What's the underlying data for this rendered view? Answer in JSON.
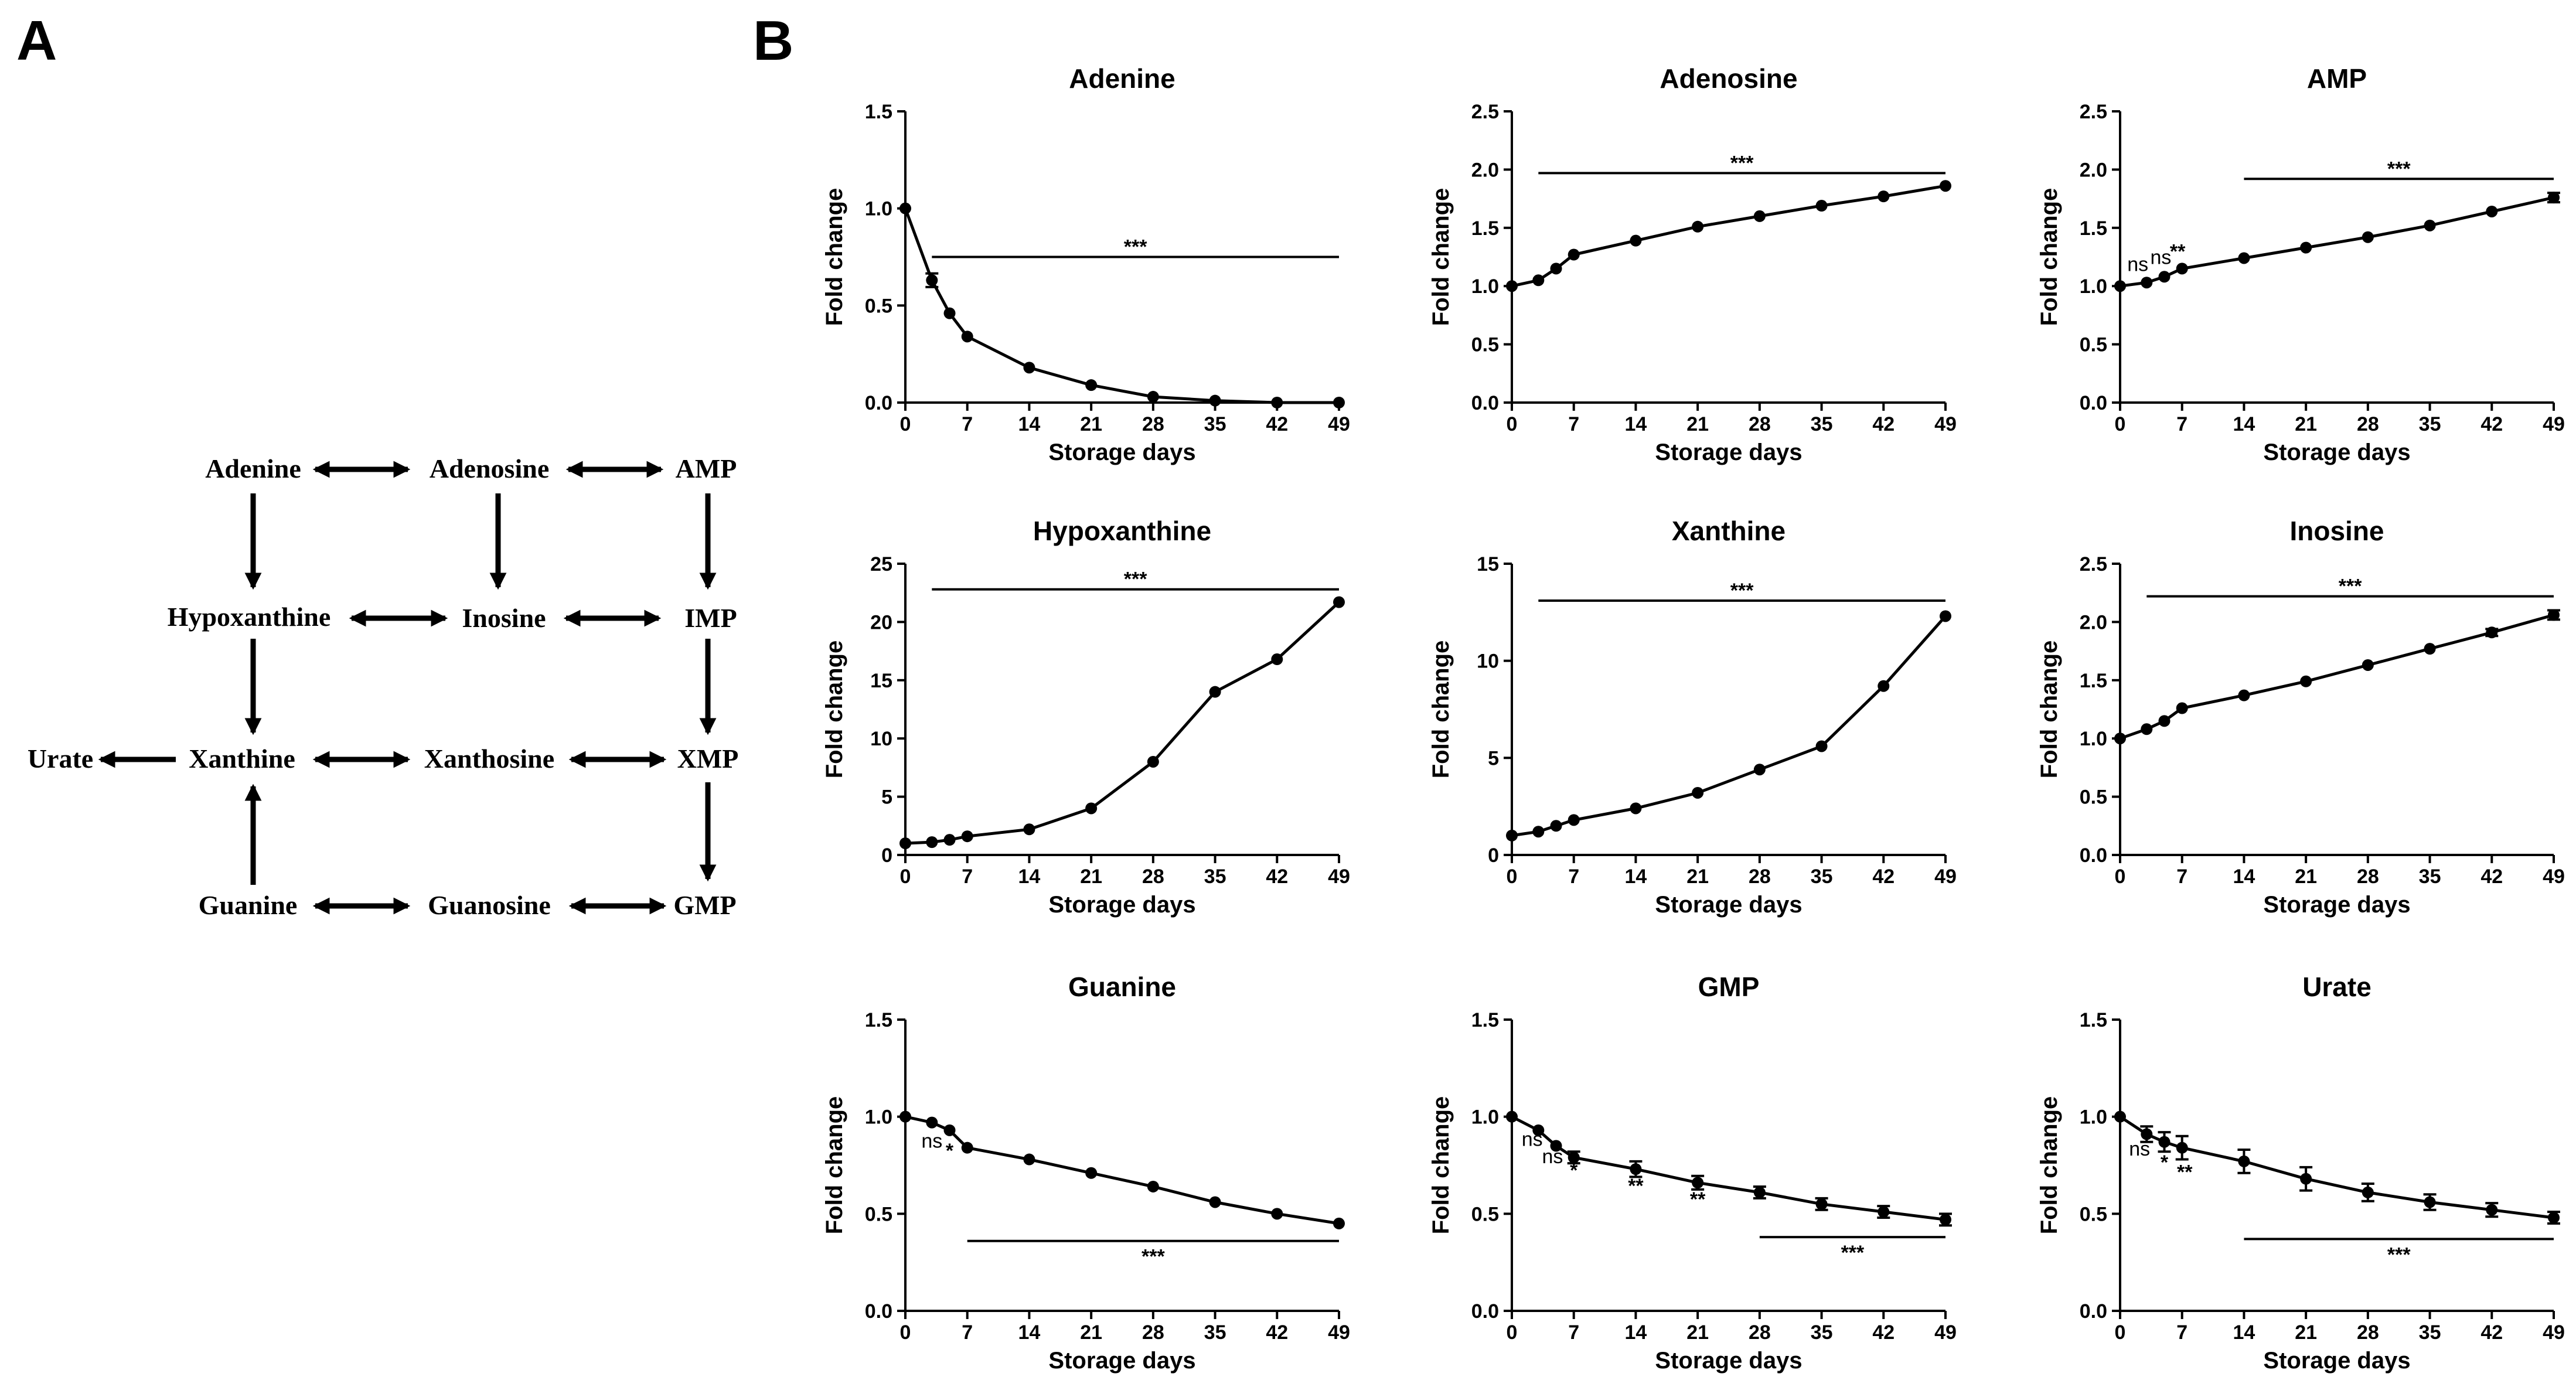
{
  "panels": {
    "a": "A",
    "b": "B"
  },
  "pathway": {
    "nodes": {
      "adenine": "Adenine",
      "adenosine": "Adenosine",
      "amp": "AMP",
      "hypoxanthine": "Hypoxanthine",
      "inosine": "Inosine",
      "imp": "IMP",
      "urate": "Urate",
      "xanthine": "Xanthine",
      "xanthosine": "Xanthosine",
      "xmp": "XMP",
      "guanine": "Guanine",
      "guanosine": "Guanosine",
      "gmp": "GMP"
    }
  },
  "chart_data": [
    {
      "type": "line",
      "title": "Adenine",
      "xlabel": "Storage days",
      "ylabel": "Fold change",
      "x": [
        0,
        3,
        5,
        7,
        14,
        21,
        28,
        35,
        42,
        49
      ],
      "y": [
        1.0,
        0.63,
        0.46,
        0.34,
        0.18,
        0.09,
        0.03,
        0.01,
        0.0,
        0.0
      ],
      "err": [
        0,
        0.035,
        0,
        0,
        0,
        0,
        0,
        0,
        0,
        0
      ],
      "xticks": [
        0,
        7,
        14,
        21,
        28,
        35,
        42,
        49
      ],
      "xlim": [
        0,
        49
      ],
      "yticks": [
        "0.0",
        "0.5",
        "1.0",
        "1.5"
      ],
      "ylim": [
        0,
        1.5
      ],
      "annotations": [
        {
          "type": "bar",
          "from": 3,
          "to": 49,
          "y": 0.75,
          "label": "***"
        }
      ]
    },
    {
      "type": "line",
      "title": "Adenosine",
      "xlabel": "Storage days",
      "ylabel": "Fold change",
      "x": [
        0,
        3,
        5,
        7,
        14,
        21,
        28,
        35,
        42,
        49
      ],
      "y": [
        1.0,
        1.05,
        1.15,
        1.27,
        1.39,
        1.51,
        1.6,
        1.69,
        1.77,
        1.86
      ],
      "err": [
        0,
        0,
        0,
        0,
        0,
        0,
        0,
        0,
        0,
        0
      ],
      "xticks": [
        0,
        7,
        14,
        21,
        28,
        35,
        42,
        49
      ],
      "xlim": [
        0,
        49
      ],
      "yticks": [
        "0.0",
        "0.5",
        "1.0",
        "1.5",
        "2.0",
        "2.5"
      ],
      "ylim": [
        0,
        2.5
      ],
      "annotations": [
        {
          "type": "bar",
          "from": 3,
          "to": 49,
          "y": 1.97,
          "label": "***"
        }
      ]
    },
    {
      "type": "line",
      "title": "AMP",
      "xlabel": "Storage days",
      "ylabel": "Fold change",
      "x": [
        0,
        3,
        5,
        7,
        14,
        21,
        28,
        35,
        42,
        49
      ],
      "y": [
        1.0,
        1.03,
        1.08,
        1.15,
        1.24,
        1.33,
        1.42,
        1.52,
        1.64,
        1.76
      ],
      "err": [
        0,
        0,
        0,
        0,
        0,
        0,
        0,
        0,
        0,
        0.04
      ],
      "xticks": [
        0,
        7,
        14,
        21,
        28,
        35,
        42,
        49
      ],
      "xlim": [
        0,
        49
      ],
      "yticks": [
        "0.0",
        "0.5",
        "1.0",
        "1.5",
        "2.0",
        "2.5"
      ],
      "ylim": [
        0,
        2.5
      ],
      "annotations": [
        {
          "type": "bar",
          "from": 14,
          "to": 49,
          "y": 1.92,
          "label": "***"
        },
        {
          "type": "text",
          "x": 2,
          "y": 1.13,
          "label": "ns",
          "cls": "ns"
        },
        {
          "type": "text",
          "x": 4.6,
          "y": 1.19,
          "label": "ns",
          "cls": "ns"
        },
        {
          "type": "text",
          "x": 6.5,
          "y": 1.24,
          "label": "**",
          "cls": "sig"
        }
      ]
    },
    {
      "type": "line",
      "title": "Hypoxanthine",
      "xlabel": "Storage days",
      "ylabel": "Fold change",
      "x": [
        0,
        3,
        5,
        7,
        14,
        21,
        28,
        35,
        42,
        49
      ],
      "y": [
        1.0,
        1.1,
        1.3,
        1.6,
        2.2,
        4.0,
        8.0,
        14.0,
        16.8,
        21.7
      ],
      "err": [
        0,
        0,
        0,
        0,
        0,
        0,
        0,
        0,
        0,
        0
      ],
      "xticks": [
        0,
        7,
        14,
        21,
        28,
        35,
        42,
        49
      ],
      "xlim": [
        0,
        49
      ],
      "yticks": [
        "0",
        "5",
        "10",
        "15",
        "20",
        "25"
      ],
      "ylim": [
        0,
        25
      ],
      "annotations": [
        {
          "type": "bar",
          "from": 3,
          "to": 49,
          "y": 22.8,
          "label": "***"
        }
      ]
    },
    {
      "type": "line",
      "title": "Xanthine",
      "xlabel": "Storage days",
      "ylabel": "Fold change",
      "x": [
        0,
        3,
        5,
        7,
        14,
        21,
        28,
        35,
        42,
        49
      ],
      "y": [
        1.0,
        1.2,
        1.5,
        1.8,
        2.4,
        3.2,
        4.4,
        5.6,
        8.7,
        12.3
      ],
      "err": [
        0,
        0,
        0,
        0,
        0,
        0,
        0,
        0,
        0,
        0
      ],
      "xticks": [
        0,
        7,
        14,
        21,
        28,
        35,
        42,
        49
      ],
      "xlim": [
        0,
        49
      ],
      "yticks": [
        "0",
        "5",
        "10",
        "15"
      ],
      "ylim": [
        0,
        15
      ],
      "annotations": [
        {
          "type": "bar",
          "from": 3,
          "to": 49,
          "y": 13.1,
          "label": "***"
        }
      ]
    },
    {
      "type": "line",
      "title": "Inosine",
      "xlabel": "Storage days",
      "ylabel": "Fold change",
      "x": [
        0,
        3,
        5,
        7,
        14,
        21,
        28,
        35,
        42,
        49
      ],
      "y": [
        1.0,
        1.08,
        1.15,
        1.26,
        1.37,
        1.49,
        1.63,
        1.77,
        1.91,
        2.06
      ],
      "err": [
        0,
        0,
        0,
        0,
        0,
        0,
        0,
        0,
        0.03,
        0.04
      ],
      "xticks": [
        0,
        7,
        14,
        21,
        28,
        35,
        42,
        49
      ],
      "xlim": [
        0,
        49
      ],
      "yticks": [
        "0.0",
        "0.5",
        "1.0",
        "1.5",
        "2.0",
        "2.5"
      ],
      "ylim": [
        0,
        2.5
      ],
      "annotations": [
        {
          "type": "bar",
          "from": 3,
          "to": 49,
          "y": 2.22,
          "label": "***"
        }
      ]
    },
    {
      "type": "line",
      "title": "Guanine",
      "xlabel": "Storage days",
      "ylabel": "Fold change",
      "x": [
        0,
        3,
        5,
        7,
        14,
        21,
        28,
        35,
        42,
        49
      ],
      "y": [
        1.0,
        0.97,
        0.93,
        0.84,
        0.78,
        0.71,
        0.64,
        0.56,
        0.5,
        0.45
      ],
      "err": [
        0,
        0,
        0,
        0,
        0,
        0,
        0,
        0,
        0,
        0
      ],
      "xticks": [
        0,
        7,
        14,
        21,
        28,
        35,
        42,
        49
      ],
      "xlim": [
        0,
        49
      ],
      "yticks": [
        "0.0",
        "0.5",
        "1.0",
        "1.5"
      ],
      "ylim": [
        0,
        1.5
      ],
      "annotations": [
        {
          "type": "bar",
          "from": 7,
          "to": 49,
          "y": 0.36,
          "label": "***",
          "below": true
        },
        {
          "type": "text",
          "x": 3,
          "y": 0.84,
          "label": "ns",
          "cls": "ns"
        },
        {
          "type": "text",
          "x": 5,
          "y": 0.79,
          "label": "*",
          "cls": "sig"
        }
      ]
    },
    {
      "type": "line",
      "title": "GMP",
      "xlabel": "Storage days",
      "ylabel": "Fold change",
      "x": [
        0,
        3,
        5,
        7,
        14,
        21,
        28,
        35,
        42,
        49
      ],
      "y": [
        1.0,
        0.93,
        0.85,
        0.79,
        0.73,
        0.66,
        0.61,
        0.55,
        0.51,
        0.47
      ],
      "err": [
        0,
        0,
        0,
        0.03,
        0.04,
        0.035,
        0.03,
        0.03,
        0.03,
        0.03
      ],
      "xticks": [
        0,
        7,
        14,
        21,
        28,
        35,
        42,
        49
      ],
      "xlim": [
        0,
        49
      ],
      "yticks": [
        "0.0",
        "0.5",
        "1.0",
        "1.5"
      ],
      "ylim": [
        0,
        1.5
      ],
      "annotations": [
        {
          "type": "bar",
          "from": 28,
          "to": 49,
          "y": 0.38,
          "label": "***",
          "below": true
        },
        {
          "type": "text",
          "x": 2.3,
          "y": 0.85,
          "label": "ns",
          "cls": "ns"
        },
        {
          "type": "text",
          "x": 4.6,
          "y": 0.76,
          "label": "ns",
          "cls": "ns"
        },
        {
          "type": "text",
          "x": 7,
          "y": 0.69,
          "label": "*",
          "cls": "sig"
        },
        {
          "type": "text",
          "x": 14,
          "y": 0.61,
          "label": "**",
          "cls": "sig"
        },
        {
          "type": "text",
          "x": 21,
          "y": 0.54,
          "label": "**",
          "cls": "sig"
        }
      ]
    },
    {
      "type": "line",
      "title": "Urate",
      "xlabel": "Storage days",
      "ylabel": "Fold change",
      "x": [
        0,
        3,
        5,
        7,
        14,
        21,
        28,
        35,
        42,
        49
      ],
      "y": [
        1.0,
        0.91,
        0.87,
        0.84,
        0.77,
        0.68,
        0.61,
        0.56,
        0.52,
        0.48
      ],
      "err": [
        0,
        0.04,
        0.05,
        0.06,
        0.06,
        0.06,
        0.045,
        0.04,
        0.035,
        0.03
      ],
      "xticks": [
        0,
        7,
        14,
        21,
        28,
        35,
        42,
        49
      ],
      "xlim": [
        0,
        49
      ],
      "yticks": [
        "0.0",
        "0.5",
        "1.0",
        "1.5"
      ],
      "ylim": [
        0,
        1.5
      ],
      "annotations": [
        {
          "type": "bar",
          "from": 14,
          "to": 49,
          "y": 0.37,
          "label": "***",
          "below": true
        },
        {
          "type": "text",
          "x": 2.2,
          "y": 0.8,
          "label": "ns",
          "cls": "ns"
        },
        {
          "type": "text",
          "x": 5,
          "y": 0.73,
          "label": "*",
          "cls": "sig"
        },
        {
          "type": "text",
          "x": 7.3,
          "y": 0.68,
          "label": "**",
          "cls": "sig"
        }
      ]
    }
  ]
}
